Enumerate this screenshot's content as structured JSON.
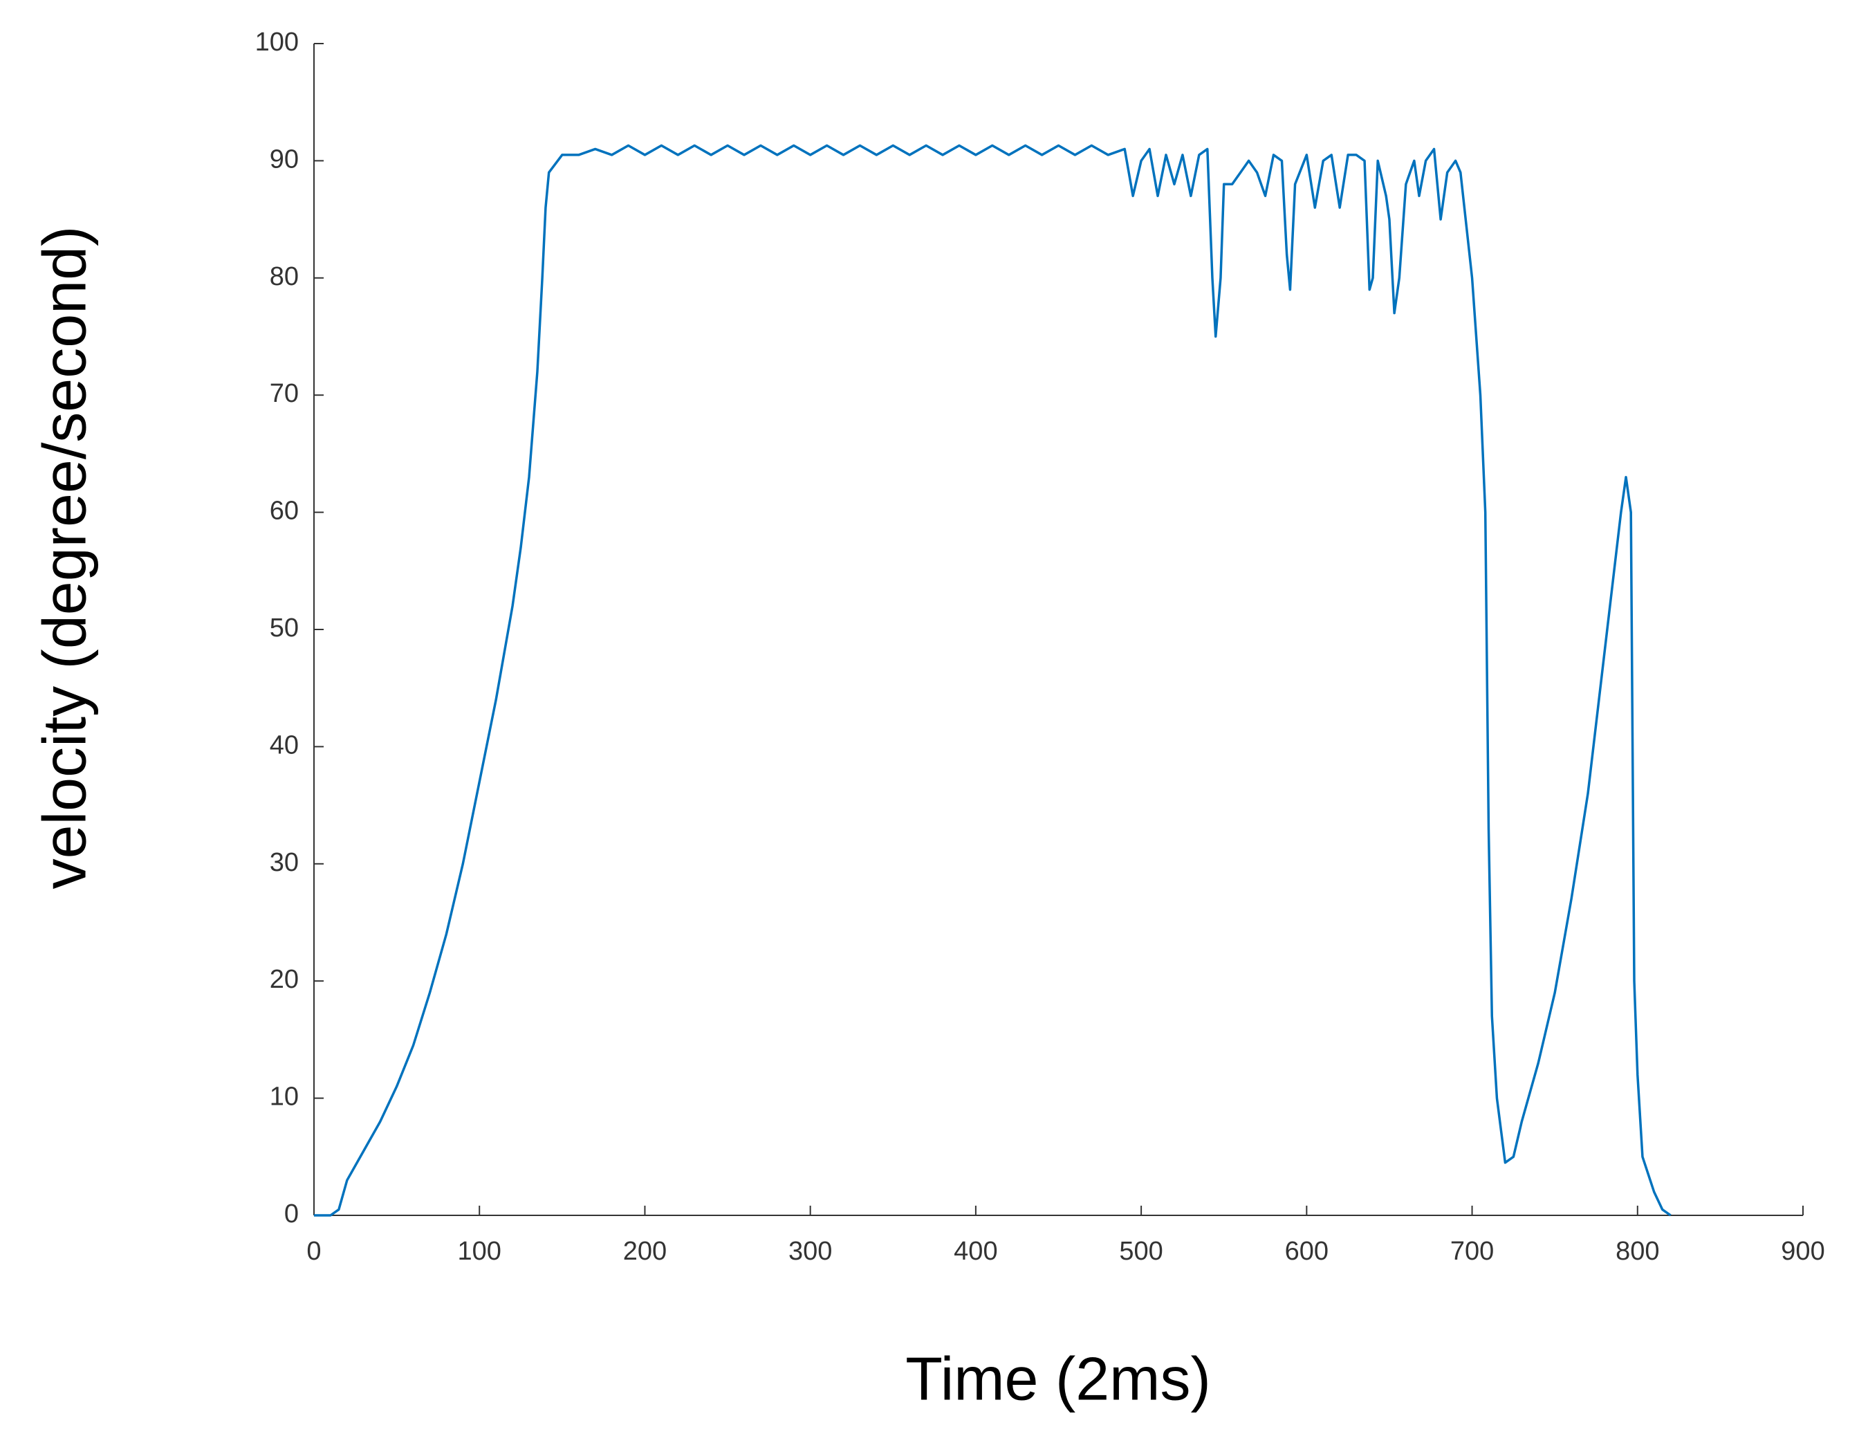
{
  "chart_data": {
    "type": "line",
    "x_label": "Time (2ms)",
    "y_label": "velocity (degree/second)",
    "xlim": [
      0,
      900
    ],
    "xticks": [
      0,
      100,
      200,
      300,
      400,
      500,
      600,
      700,
      800,
      900
    ],
    "ylim": [
      0,
      100
    ],
    "yticks": [
      0,
      10,
      20,
      30,
      40,
      50,
      60,
      70,
      80,
      90,
      100
    ],
    "x": [
      0,
      10,
      15,
      20,
      30,
      40,
      50,
      60,
      70,
      80,
      90,
      100,
      110,
      120,
      125,
      130,
      135,
      138,
      140,
      142,
      150,
      160,
      170,
      180,
      190,
      200,
      210,
      220,
      230,
      240,
      250,
      260,
      270,
      280,
      290,
      300,
      310,
      320,
      330,
      340,
      350,
      360,
      370,
      380,
      390,
      400,
      410,
      420,
      430,
      440,
      450,
      460,
      470,
      480,
      490,
      495,
      500,
      505,
      510,
      515,
      520,
      525,
      530,
      535,
      540,
      543,
      545,
      548,
      550,
      555,
      560,
      565,
      570,
      575,
      580,
      585,
      588,
      590,
      593,
      600,
      605,
      610,
      615,
      620,
      625,
      630,
      635,
      638,
      640,
      643,
      648,
      650,
      653,
      656,
      660,
      665,
      668,
      672,
      677,
      681,
      685,
      690,
      693,
      700,
      705,
      708,
      710,
      712,
      715,
      720,
      725,
      730,
      740,
      750,
      760,
      770,
      780,
      790,
      793,
      796,
      798,
      800,
      803,
      810,
      815,
      820
    ],
    "series": [
      {
        "color": "#0072bd",
        "values": [
          0,
          0,
          0.5,
          3,
          5.5,
          8,
          11,
          14.5,
          19,
          24,
          30,
          37,
          44,
          52,
          57,
          63,
          72,
          80,
          86,
          89,
          90.5,
          90.5,
          91,
          90.5,
          91.3,
          90.5,
          91.3,
          90.5,
          91.3,
          90.5,
          91.3,
          90.5,
          91.3,
          90.5,
          91.3,
          90.5,
          91.3,
          90.5,
          91.3,
          90.5,
          91.3,
          90.5,
          91.3,
          90.5,
          91.3,
          90.5,
          91.3,
          90.5,
          91.3,
          90.5,
          91.3,
          90.5,
          91.3,
          90.5,
          91,
          87,
          90,
          91,
          87,
          90.5,
          88,
          90.5,
          87,
          90.5,
          91,
          80,
          75,
          80,
          88,
          88,
          89,
          90,
          89,
          87,
          90.5,
          90,
          82,
          79,
          88,
          90.5,
          86,
          90,
          90.5,
          86,
          90.5,
          90.5,
          90,
          79,
          80,
          90,
          87,
          85,
          77,
          80,
          88,
          90,
          87,
          90,
          91,
          85,
          89,
          90,
          89,
          80,
          70,
          60,
          33,
          17,
          10,
          4.5,
          5,
          8,
          13,
          19,
          27,
          36,
          48,
          60,
          63,
          60,
          20,
          12,
          5,
          2,
          0.5,
          0
        ]
      }
    ]
  }
}
